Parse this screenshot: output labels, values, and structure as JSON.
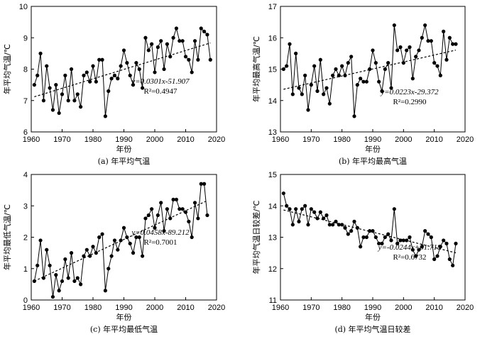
{
  "chart_data": [
    {
      "type": "line",
      "caption": "(a) 年平均气温",
      "xlabel": "年份",
      "ylabel": "年平均气温/℃",
      "xlim": [
        1960,
        2020
      ],
      "ylim": [
        6,
        10
      ],
      "xticks": [
        1960,
        1970,
        1980,
        1990,
        2000,
        2010,
        2020
      ],
      "yticks": [
        6,
        7,
        8,
        9,
        10
      ],
      "equation": "y=0.0301x-51.907",
      "r2": "R²=0.4947",
      "trend": {
        "slope": 0.0301,
        "intercept": -51.907
      },
      "x": [
        1961,
        1962,
        1963,
        1964,
        1965,
        1966,
        1967,
        1968,
        1969,
        1970,
        1971,
        1972,
        1973,
        1974,
        1975,
        1976,
        1977,
        1978,
        1979,
        1980,
        1981,
        1982,
        1983,
        1984,
        1985,
        1986,
        1987,
        1988,
        1989,
        1990,
        1991,
        1992,
        1993,
        1994,
        1995,
        1996,
        1997,
        1998,
        1999,
        2000,
        2001,
        2002,
        2003,
        2004,
        2005,
        2006,
        2007,
        2008,
        2009,
        2010,
        2011,
        2012,
        2013,
        2014,
        2015,
        2016,
        2017,
        2018
      ],
      "values": [
        7.5,
        7.8,
        8.5,
        7.0,
        8.1,
        7.4,
        6.7,
        7.5,
        6.6,
        7.2,
        7.8,
        7.0,
        8.0,
        7.0,
        7.2,
        6.8,
        7.8,
        7.9,
        7.6,
        8.1,
        7.6,
        8.3,
        8.3,
        6.5,
        7.3,
        7.7,
        7.8,
        7.7,
        8.1,
        8.6,
        8.2,
        7.8,
        7.5,
        8.2,
        8.0,
        7.4,
        9.0,
        8.6,
        8.8,
        7.9,
        8.7,
        8.9,
        8.0,
        8.8,
        8.4,
        9.0,
        9.3,
        8.9,
        8.9,
        8.4,
        8.3,
        7.9,
        8.9,
        8.3,
        9.3,
        9.2,
        9.1,
        8.3
      ]
    },
    {
      "type": "line",
      "caption": "(b) 年平均最高气温",
      "xlabel": "年份",
      "ylabel": "年平均最高气温/℃",
      "xlim": [
        1960,
        2020
      ],
      "ylim": [
        13,
        17
      ],
      "xticks": [
        1960,
        1970,
        1980,
        1990,
        2000,
        2010,
        2020
      ],
      "yticks": [
        13,
        14,
        15,
        16,
        17
      ],
      "equation": "y=0.0223x-29.372",
      "r2": "R²=0.2990",
      "trend": {
        "slope": 0.0223,
        "intercept": -29.372
      },
      "x": [
        1961,
        1962,
        1963,
        1964,
        1965,
        1966,
        1967,
        1968,
        1969,
        1970,
        1971,
        1972,
        1973,
        1974,
        1975,
        1976,
        1977,
        1978,
        1979,
        1980,
        1981,
        1982,
        1983,
        1984,
        1985,
        1986,
        1987,
        1988,
        1989,
        1990,
        1991,
        1992,
        1993,
        1994,
        1995,
        1996,
        1997,
        1998,
        1999,
        2000,
        2001,
        2002,
        2003,
        2004,
        2005,
        2006,
        2007,
        2008,
        2009,
        2010,
        2011,
        2012,
        2013,
        2014,
        2015,
        2016,
        2017
      ],
      "values": [
        15.0,
        15.1,
        15.8,
        14.2,
        15.5,
        14.4,
        14.2,
        14.8,
        13.7,
        14.5,
        15.1,
        14.3,
        15.3,
        14.2,
        14.4,
        13.9,
        14.8,
        15.0,
        14.8,
        15.1,
        14.8,
        15.2,
        15.4,
        13.5,
        14.5,
        14.7,
        14.6,
        14.6,
        15.0,
        15.6,
        15.2,
        14.6,
        14.3,
        15.0,
        15.2,
        14.4,
        16.4,
        15.6,
        15.7,
        15.2,
        15.6,
        15.7,
        14.7,
        15.4,
        15.6,
        16.0,
        16.4,
        15.9,
        15.9,
        15.2,
        15.1,
        14.8,
        16.2,
        15.3,
        16.0,
        15.8,
        15.8
      ]
    },
    {
      "type": "line",
      "caption": "(c) 年平均最低气温",
      "xlabel": "年份",
      "ylabel": "年平均最低气温/℃",
      "xlim": [
        1960,
        2020
      ],
      "ylim": [
        0,
        4
      ],
      "xticks": [
        1960,
        1970,
        1980,
        1990,
        2000,
        2010,
        2020
      ],
      "yticks": [
        0,
        1,
        2,
        3,
        4
      ],
      "equation": "y=0.0458x-89.212",
      "r2": "R²=0.7001",
      "trend": {
        "slope": 0.0458,
        "intercept": -89.212
      },
      "x": [
        1961,
        1962,
        1963,
        1964,
        1965,
        1966,
        1967,
        1968,
        1969,
        1970,
        1971,
        1972,
        1973,
        1974,
        1975,
        1976,
        1977,
        1978,
        1979,
        1980,
        1981,
        1982,
        1983,
        1984,
        1985,
        1986,
        1987,
        1988,
        1989,
        1990,
        1991,
        1992,
        1993,
        1994,
        1995,
        1996,
        1997,
        1998,
        1999,
        2000,
        2001,
        2002,
        2003,
        2004,
        2005,
        2006,
        2007,
        2008,
        2009,
        2010,
        2011,
        2012,
        2013,
        2014,
        2015,
        2016,
        2017
      ],
      "values": [
        0.6,
        1.1,
        1.9,
        0.7,
        1.6,
        1.1,
        0.1,
        0.8,
        0.3,
        0.6,
        1.3,
        0.7,
        1.5,
        0.6,
        0.7,
        0.5,
        1.4,
        1.6,
        1.4,
        1.7,
        1.5,
        2.0,
        2.1,
        0.3,
        1.0,
        1.4,
        1.9,
        1.6,
        1.9,
        2.3,
        2.0,
        1.8,
        1.5,
        2.0,
        2.0,
        1.4,
        2.6,
        2.7,
        2.9,
        2.3,
        2.7,
        3.1,
        2.2,
        2.9,
        2.6,
        3.2,
        3.2,
        2.9,
        2.9,
        2.8,
        2.5,
        2.0,
        3.1,
        2.6,
        3.7,
        3.7,
        2.7
      ]
    },
    {
      "type": "line",
      "caption": "(d) 年平均气温日较差",
      "xlabel": "年份",
      "ylabel": "年平均气温日较差/℃",
      "xlim": [
        1960,
        2020
      ],
      "ylim": [
        11,
        15
      ],
      "xticks": [
        1960,
        1970,
        1980,
        1990,
        2000,
        2010,
        2020
      ],
      "yticks": [
        11,
        12,
        13,
        14,
        15
      ],
      "equation": "y=-0.0244x+61.718",
      "r2": "R²=0.6732",
      "trend": {
        "slope": -0.0244,
        "intercept": 61.718
      },
      "x": [
        1961,
        1962,
        1963,
        1964,
        1965,
        1966,
        1967,
        1968,
        1969,
        1970,
        1971,
        1972,
        1973,
        1974,
        1975,
        1976,
        1977,
        1978,
        1979,
        1980,
        1981,
        1982,
        1983,
        1984,
        1985,
        1986,
        1987,
        1988,
        1989,
        1990,
        1991,
        1992,
        1993,
        1994,
        1995,
        1996,
        1997,
        1998,
        1999,
        2000,
        2001,
        2002,
        2003,
        2004,
        2005,
        2006,
        2007,
        2008,
        2009,
        2010,
        2011,
        2012,
        2013,
        2014,
        2015,
        2016,
        2017
      ],
      "values": [
        14.4,
        14.0,
        13.9,
        13.4,
        13.9,
        13.5,
        13.9,
        14.0,
        13.4,
        13.9,
        13.8,
        13.6,
        13.8,
        13.6,
        13.7,
        13.4,
        13.4,
        13.5,
        13.4,
        13.4,
        13.3,
        13.1,
        13.2,
        13.5,
        13.3,
        12.7,
        13.0,
        13.0,
        13.2,
        13.2,
        13.0,
        12.8,
        12.8,
        13.0,
        13.1,
        12.9,
        13.9,
        12.8,
        12.9,
        12.9,
        12.9,
        13.0,
        12.6,
        12.4,
        12.6,
        12.7,
        13.2,
        13.1,
        13.0,
        12.3,
        12.4,
        12.7,
        12.9,
        12.8,
        12.3,
        12.1,
        12.8
      ]
    }
  ]
}
